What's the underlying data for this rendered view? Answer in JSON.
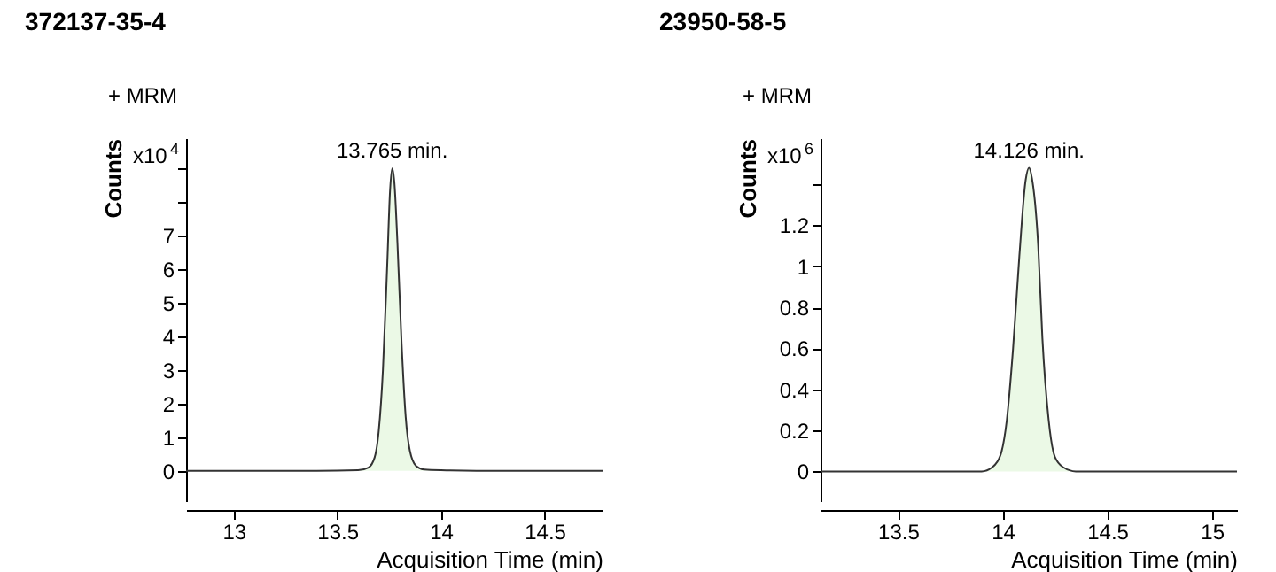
{
  "chart_data": [
    {
      "type": "area",
      "title": "372137-35-4",
      "xlabel": "Acquisition Time (min)",
      "ylabel": "Counts",
      "annotations": [
        "+ MRM",
        "x10$^{4}$",
        {
          "text": "13.765 min.",
          "x": 13.765,
          "y": 9.0
        }
      ],
      "xlim": [
        12.77,
        14.78
      ],
      "xticks": [
        13,
        13.5,
        14,
        14.5
      ],
      "ylim": [
        -0.9,
        9.9
      ],
      "yticks": [
        0,
        1,
        2,
        3,
        4,
        5,
        6,
        7,
        {
          "value": 8,
          "label": null
        },
        {
          "value": 9,
          "label": null
        }
      ],
      "series": [
        {
          "color": "#e2f6dc",
          "x": [
            12.77,
            13.0,
            13.4,
            13.6,
            13.65,
            13.68,
            13.7,
            13.72,
            13.74,
            13.755,
            13.765,
            13.775,
            13.79,
            13.81,
            13.83,
            13.85,
            13.88,
            13.92,
            14.0,
            14.3,
            14.78
          ],
          "values": [
            0,
            0,
            0,
            0.02,
            0.1,
            0.4,
            1.2,
            3.0,
            6.0,
            8.4,
            9.0,
            8.6,
            6.8,
            3.8,
            1.6,
            0.6,
            0.15,
            0.04,
            0.02,
            0,
            0
          ]
        }
      ]
    },
    {
      "type": "area",
      "title": "23950-58-5",
      "xlabel": "Acquisition Time (min)",
      "ylabel": "Counts",
      "annotations": [
        "+ MRM",
        "x10$^{6}$",
        {
          "text": "14.126 min.",
          "x": 14.126,
          "y": 1.48
        }
      ],
      "xlim": [
        13.13,
        15.12
      ],
      "xticks": [
        13.5,
        14,
        14.5,
        15
      ],
      "ylim": [
        -0.145,
        1.625
      ],
      "yticks": [
        0,
        0.2,
        0.4,
        0.6,
        0.8,
        1,
        1.2,
        {
          "value": 1.4,
          "label": null
        }
      ],
      "series": [
        {
          "color": "#e2f6dc",
          "x": [
            13.13,
            13.5,
            13.9,
            13.95,
            13.99,
            14.02,
            14.05,
            14.08,
            14.11,
            14.126,
            14.14,
            14.17,
            14.19,
            14.22,
            14.25,
            14.29,
            14.35,
            15.12
          ],
          "values": [
            0,
            0,
            0,
            0.02,
            0.08,
            0.25,
            0.6,
            1.05,
            1.42,
            1.48,
            1.43,
            1.1,
            0.65,
            0.25,
            0.07,
            0.02,
            0,
            0
          ]
        }
      ]
    }
  ]
}
